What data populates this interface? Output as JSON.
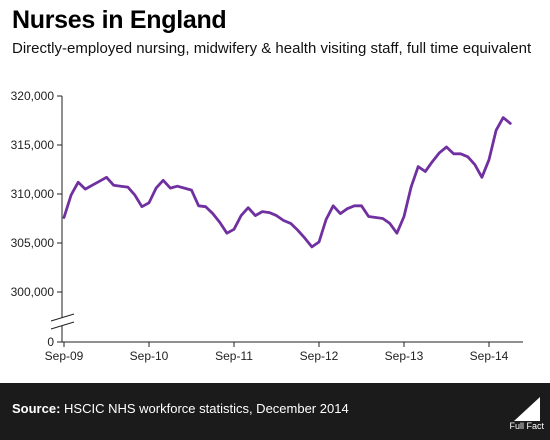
{
  "title": "Nurses in England",
  "subtitle": "Directly-employed nursing, midwifery & health visiting staff, full time equivalent",
  "footer": {
    "source_label": "Source:",
    "source_text": "HSCIC NHS workforce statistics, December 2014",
    "logo_text": "Full Fact"
  },
  "colors": {
    "line": "#7030a0",
    "footer_bg": "#1b1b1b",
    "axis": "#222222",
    "grid": "#e3e3e3"
  },
  "chart_data": {
    "type": "line",
    "title": "Nurses in England",
    "subtitle": "Directly-employed nursing, midwifery & health visiting staff, full time equivalent",
    "y_tick_labels": [
      "320,000",
      "315,000",
      "310,000",
      "305,000",
      "300,000",
      "0"
    ],
    "x_tick_labels": [
      "Sep-09",
      "Sep-10",
      "Sep-11",
      "Sep-12",
      "Sep-13",
      "Sep-14"
    ],
    "y_axis_break": true,
    "grid": false,
    "series": [
      {
        "values": [
          307600,
          309900,
          311200,
          310500,
          310900,
          311300,
          311700,
          310900,
          310800,
          310700,
          309900,
          308700,
          309100,
          310600,
          311400,
          310600,
          310800,
          310600,
          310400,
          308800,
          308700,
          308000,
          307100,
          306000,
          306400,
          307800,
          308600,
          307800,
          308200,
          308100,
          307800,
          307300,
          307000,
          306300,
          305500,
          304600,
          305100,
          307400,
          308800,
          308000,
          308500,
          308800,
          308800,
          307700,
          307600,
          307500,
          307000,
          306000,
          307700,
          310700,
          312800,
          312300,
          313300,
          314200,
          314800,
          314100,
          314100,
          313800,
          313000,
          311700,
          313500,
          316500,
          317800,
          317200
        ]
      }
    ]
  }
}
